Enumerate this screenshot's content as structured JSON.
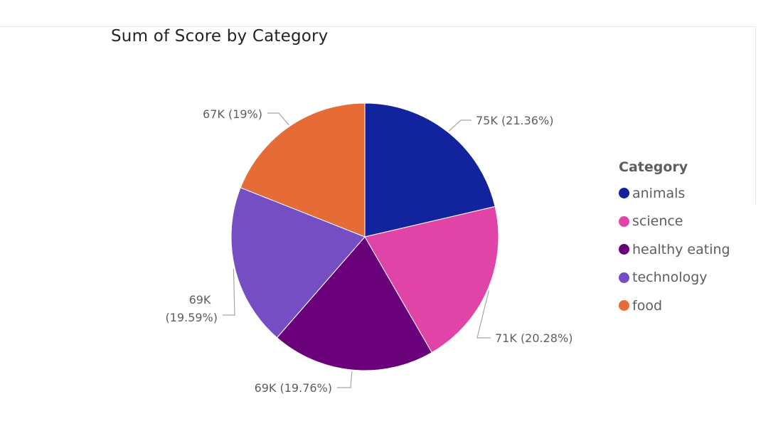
{
  "chart_data": {
    "type": "pie",
    "title": "Sum of Score by Category",
    "legend_title": "Category",
    "legend_position": "right",
    "slices": [
      {
        "category": "animals",
        "value": 75000,
        "value_label": "75K",
        "percent_label": "(21.36%)",
        "percent": 21.36,
        "color": "#12239E"
      },
      {
        "category": "science",
        "value": 71000,
        "value_label": "71K",
        "percent_label": "(20.28%)",
        "percent": 20.28,
        "color": "#E044A7"
      },
      {
        "category": "healthy eating",
        "value": 69000,
        "value_label": "69K",
        "percent_label": "(19.76%)",
        "percent": 19.76,
        "color": "#6B007B"
      },
      {
        "category": "technology",
        "value": 69000,
        "value_label": "69K",
        "percent_label": "(19.59%)",
        "percent": 19.59,
        "color": "#744EC2"
      },
      {
        "category": "food",
        "value": 67000,
        "value_label": "67K",
        "percent_label": "(19%)",
        "percent": 19.0,
        "color": "#E66C37"
      }
    ]
  }
}
